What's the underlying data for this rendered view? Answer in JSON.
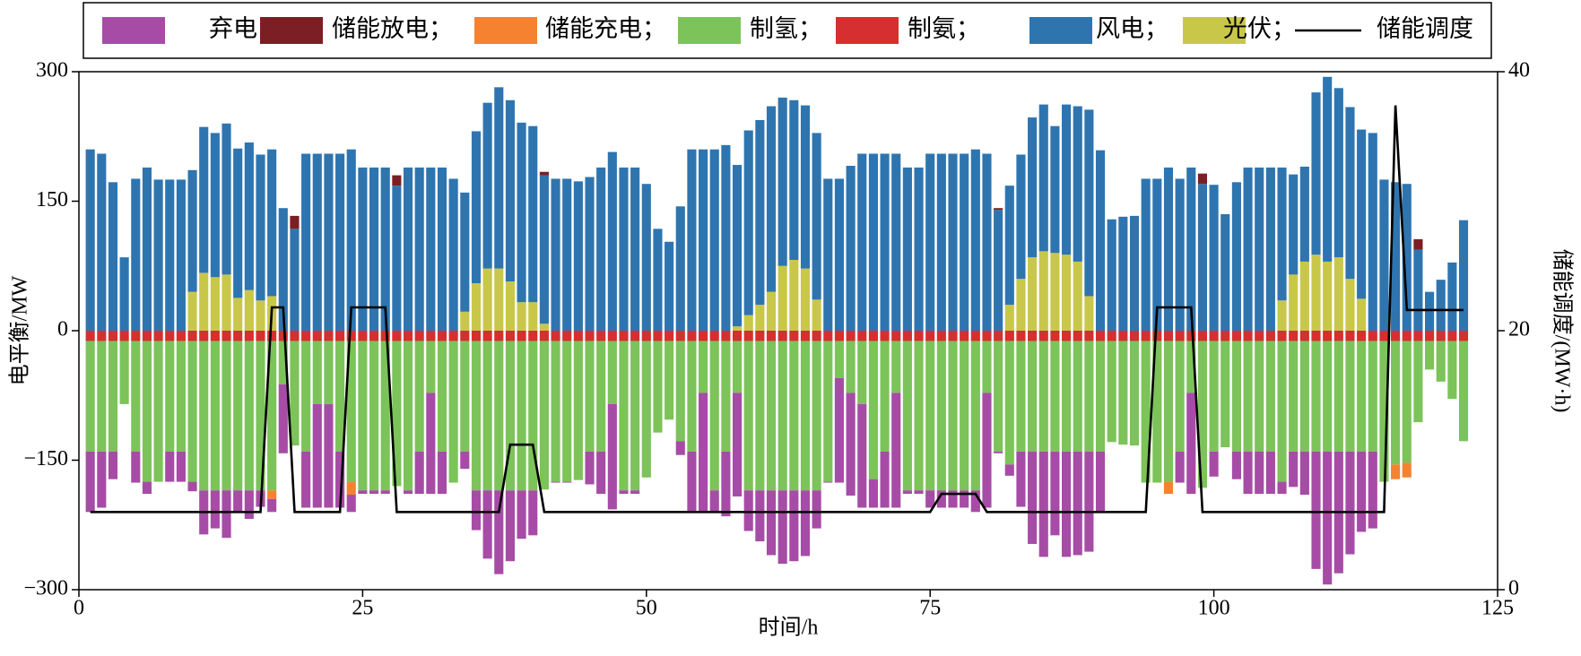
{
  "chart_data": {
    "type": "bar",
    "stacked": true,
    "xlabel": "时间/h",
    "ylabel": "电平衡/MW",
    "y2label": "储能调度/(MW·h)",
    "xlim": [
      0,
      125
    ],
    "xticks": [
      0,
      25,
      50,
      75,
      100,
      125
    ],
    "ylim": [
      -300,
      300
    ],
    "yticks": [
      {
        "value": -300,
        "label": "−300"
      },
      {
        "value": -150,
        "label": "−150"
      },
      0,
      150,
      300
    ],
    "y2lim": [
      0,
      40
    ],
    "y2ticks": [
      0,
      20,
      40
    ],
    "legend": "top",
    "x": [
      1,
      2,
      3,
      4,
      5,
      6,
      7,
      8,
      9,
      10,
      11,
      12,
      13,
      14,
      15,
      16,
      17,
      18,
      19,
      20,
      21,
      22,
      23,
      24,
      25,
      26,
      27,
      28,
      29,
      30,
      31,
      32,
      33,
      34,
      35,
      36,
      37,
      38,
      39,
      40,
      41,
      42,
      43,
      44,
      45,
      46,
      47,
      48,
      49,
      50,
      51,
      52,
      53,
      54,
      55,
      56,
      57,
      58,
      59,
      60,
      61,
      62,
      63,
      64,
      65,
      66,
      67,
      68,
      69,
      70,
      71,
      72,
      73,
      74,
      75,
      76,
      77,
      78,
      79,
      80,
      81,
      82,
      83,
      84,
      85,
      86,
      87,
      88,
      89,
      90,
      91,
      92,
      93,
      94,
      95,
      96,
      97,
      98,
      99,
      100,
      101,
      102,
      103,
      104,
      105,
      106,
      107,
      108,
      109,
      110,
      111,
      112,
      113,
      114,
      115,
      116,
      117,
      118,
      119,
      120,
      121,
      122
    ],
    "series": [
      {
        "name": "弃电；",
        "color": "#a64ca6",
        "values": [
          -70,
          -65,
          -32,
          0,
          -36,
          -14,
          0,
          -35,
          -35,
          -11,
          -51,
          -44,
          -55,
          -26,
          -33,
          -19,
          -15,
          -80,
          0,
          -65,
          -120,
          -120,
          -65,
          -20,
          -4,
          -4,
          -4,
          0,
          -4,
          -49,
          -117,
          -49,
          0,
          -20,
          -46,
          -79,
          -97,
          -82,
          -56,
          -52,
          0,
          -1,
          -1,
          0,
          -38,
          -49,
          -122,
          -4,
          -4,
          0,
          0,
          0,
          -16,
          -70,
          -138,
          -25,
          -75,
          -120,
          -47,
          -59,
          -75,
          -85,
          -82,
          -76,
          -44,
          -1,
          -121,
          -119,
          -120,
          -33,
          -65,
          -133,
          -4,
          -4,
          -20,
          -20,
          -20,
          -20,
          -25,
          -133,
          -2,
          -13,
          -64,
          -107,
          -122,
          -97,
          -122,
          -120,
          -116,
          -69,
          0,
          0,
          0,
          0,
          0,
          0,
          -36,
          -117,
          0,
          -29,
          0,
          -32,
          -49,
          -49,
          -49,
          -14,
          -41,
          -50,
          -136,
          -154,
          -141,
          -119,
          -93,
          -89,
          0,
          0,
          0,
          0,
          0,
          0,
          0,
          0
        ]
      },
      {
        "name": "储能放电；",
        "color": "#7b1f24",
        "values": [
          0,
          0,
          0,
          0,
          0,
          0,
          0,
          0,
          0,
          0,
          0,
          0,
          0,
          0,
          0,
          0,
          0,
          0,
          15,
          0,
          0,
          0,
          0,
          0,
          0,
          0,
          0,
          12,
          0,
          0,
          0,
          0,
          0,
          0,
          0,
          0,
          0,
          0,
          0,
          0,
          4,
          0,
          0,
          0,
          0,
          0,
          0,
          0,
          0,
          0,
          0,
          0,
          0,
          0,
          0,
          0,
          0,
          0,
          0,
          0,
          0,
          0,
          0,
          0,
          0,
          0,
          0,
          0,
          0,
          0,
          0,
          0,
          0,
          0,
          0,
          0,
          0,
          0,
          0,
          0,
          2,
          0,
          0,
          0,
          0,
          0,
          0,
          0,
          0,
          0,
          0,
          0,
          0,
          0,
          0,
          0,
          0,
          0,
          12,
          0,
          0,
          0,
          0,
          0,
          0,
          0,
          0,
          0,
          0,
          0,
          0,
          0,
          0,
          0,
          0,
          0,
          0,
          12,
          0,
          0,
          0,
          0
        ]
      },
      {
        "name": "储能充电；",
        "color": "#f58231",
        "values": [
          0,
          0,
          0,
          0,
          0,
          0,
          0,
          0,
          0,
          0,
          0,
          0,
          0,
          0,
          0,
          0,
          -10,
          0,
          0,
          0,
          0,
          0,
          0,
          -15,
          0,
          0,
          0,
          0,
          0,
          0,
          0,
          0,
          0,
          0,
          0,
          0,
          0,
          0,
          0,
          0,
          0,
          0,
          0,
          0,
          0,
          0,
          0,
          0,
          0,
          0,
          0,
          0,
          0,
          0,
          0,
          0,
          0,
          0,
          0,
          0,
          0,
          0,
          0,
          0,
          0,
          0,
          0,
          0,
          0,
          0,
          0,
          0,
          0,
          0,
          0,
          0,
          0,
          0,
          0,
          0,
          0,
          0,
          0,
          0,
          0,
          0,
          0,
          0,
          0,
          0,
          0,
          0,
          0,
          0,
          0,
          -14,
          0,
          0,
          0,
          0,
          0,
          0,
          0,
          0,
          0,
          0,
          0,
          0,
          0,
          0,
          0,
          0,
          0,
          0,
          0,
          -17,
          -17,
          0,
          0,
          0,
          0,
          0
        ]
      },
      {
        "name": "制氢；",
        "color": "#7cc35a",
        "values": [
          -128,
          -128,
          -128,
          -73,
          -128,
          -163,
          -163,
          -128,
          -128,
          -163,
          -173,
          -173,
          -173,
          -173,
          -173,
          -173,
          -173,
          -50,
          -121,
          -128,
          -73,
          -73,
          -128,
          -163,
          -173,
          -173,
          -173,
          -168,
          -173,
          -128,
          -60,
          -128,
          -164,
          -128,
          -173,
          -173,
          -173,
          -173,
          -173,
          -173,
          -172,
          -163,
          -163,
          -161,
          -128,
          -128,
          -73,
          -173,
          -173,
          -158,
          -106,
          -91,
          -116,
          -128,
          -60,
          -173,
          -128,
          -60,
          -173,
          -173,
          -173,
          -173,
          -173,
          -173,
          -173,
          -163,
          -43,
          -60,
          -73,
          -160,
          -128,
          -60,
          -173,
          -173,
          -173,
          -173,
          -173,
          -173,
          -173,
          -60,
          -128,
          -143,
          -128,
          -128,
          -128,
          -128,
          -128,
          -128,
          -128,
          -128,
          -117,
          -120,
          -121,
          -164,
          -164,
          -163,
          -128,
          -60,
          -170,
          -128,
          -123,
          -128,
          -128,
          -128,
          -128,
          -163,
          -128,
          -128,
          -128,
          -128,
          -128,
          -128,
          -128,
          -128,
          -163,
          -143,
          -141,
          -94,
          -33,
          -47,
          -67,
          -116
        ]
      },
      {
        "name": "制氨；",
        "color": "#d62f2f",
        "values": [
          -12,
          -12,
          -12,
          -12,
          -12,
          -12,
          -12,
          -12,
          -12,
          -12,
          -12,
          -12,
          -12,
          -12,
          -12,
          -12,
          -12,
          -12,
          -12,
          -12,
          -12,
          -12,
          -12,
          -12,
          -12,
          -12,
          -12,
          -12,
          -12,
          -12,
          -12,
          -12,
          -12,
          -12,
          -12,
          -12,
          -12,
          -12,
          -12,
          -12,
          -12,
          -12,
          -12,
          -12,
          -12,
          -12,
          -12,
          -12,
          -12,
          -12,
          -12,
          -12,
          -12,
          -12,
          -12,
          -12,
          -12,
          -12,
          -12,
          -12,
          -12,
          -12,
          -12,
          -12,
          -12,
          -12,
          -12,
          -12,
          -12,
          -12,
          -12,
          -12,
          -12,
          -12,
          -12,
          -12,
          -12,
          -12,
          -12,
          -12,
          -12,
          -12,
          -12,
          -12,
          -12,
          -12,
          -12,
          -12,
          -12,
          -12,
          -12,
          -12,
          -12,
          -12,
          -12,
          -12,
          -12,
          -12,
          -12,
          -12,
          -12,
          -12,
          -12,
          -12,
          -12,
          -12,
          -12,
          -12,
          -12,
          -12,
          -12,
          -12,
          -12,
          -12,
          -12,
          -12,
          -12,
          -12,
          -12,
          -12,
          -12,
          -12
        ]
      },
      {
        "name": "风电；",
        "color": "#2e75b0",
        "values": [
          210,
          205,
          172,
          85,
          176,
          189,
          175,
          175,
          175,
          141,
          169,
          167,
          175,
          173,
          171,
          169,
          170,
          142,
          118,
          205,
          205,
          205,
          205,
          210,
          189,
          189,
          189,
          168,
          189,
          189,
          189,
          189,
          176,
          138,
          176,
          192,
          210,
          210,
          208,
          204,
          172,
          176,
          176,
          173,
          178,
          189,
          207,
          189,
          189,
          170,
          118,
          103,
          144,
          210,
          210,
          210,
          215,
          187,
          214,
          214,
          215,
          195,
          185,
          189,
          193,
          176,
          176,
          191,
          205,
          205,
          205,
          205,
          189,
          189,
          205,
          205,
          205,
          205,
          210,
          205,
          140,
          138,
          144,
          162,
          170,
          147,
          174,
          180,
          216,
          209,
          129,
          132,
          133,
          176,
          176,
          189,
          176,
          189,
          170,
          169,
          135,
          172,
          189,
          189,
          189,
          154,
          116,
          110,
          188,
          214,
          196,
          199,
          196,
          229,
          175,
          172,
          170,
          94,
          45,
          59,
          79,
          128
        ]
      },
      {
        "name": "光伏；",
        "color": "#c9c74a",
        "values": [
          0,
          0,
          0,
          0,
          0,
          0,
          0,
          0,
          0,
          45,
          67,
          62,
          65,
          38,
          47,
          35,
          40,
          0,
          0,
          0,
          0,
          0,
          0,
          0,
          0,
          0,
          0,
          0,
          0,
          0,
          0,
          0,
          0,
          22,
          55,
          72,
          72,
          57,
          33,
          33,
          8,
          0,
          0,
          0,
          0,
          0,
          0,
          0,
          0,
          0,
          0,
          0,
          0,
          0,
          0,
          0,
          0,
          5,
          18,
          30,
          45,
          75,
          82,
          72,
          36,
          0,
          0,
          0,
          0,
          0,
          0,
          0,
          0,
          0,
          0,
          0,
          0,
          0,
          0,
          0,
          0,
          30,
          60,
          85,
          92,
          90,
          88,
          80,
          40,
          0,
          0,
          0,
          0,
          0,
          0,
          0,
          0,
          0,
          0,
          0,
          0,
          0,
          0,
          0,
          0,
          35,
          65,
          80,
          88,
          80,
          85,
          60,
          37,
          0,
          0,
          0,
          0,
          0,
          0,
          0,
          0,
          0
        ]
      },
      {
        "name": "储能调度",
        "color": "#000000",
        "type": "line",
        "axis": "y2",
        "values": [
          6,
          6,
          6,
          6,
          6,
          6,
          6,
          6,
          6,
          6,
          6,
          6,
          6,
          6,
          6,
          6,
          21.8,
          21.8,
          6,
          6,
          6,
          6,
          6,
          21.8,
          21.8,
          21.8,
          21.8,
          6,
          6,
          6,
          6,
          6,
          6,
          6,
          6,
          6,
          6,
          11.2,
          11.2,
          11.2,
          6,
          6,
          6,
          6,
          6,
          6,
          6,
          6,
          6,
          6,
          6,
          6,
          6,
          6,
          6,
          6,
          6,
          6,
          6,
          6,
          6,
          6,
          6,
          6,
          6,
          6,
          6,
          6,
          6,
          6,
          6,
          6,
          6,
          6,
          6,
          7.4,
          7.4,
          7.4,
          7.4,
          6,
          6,
          6,
          6,
          6,
          6,
          6,
          6,
          6,
          6,
          6,
          6,
          6,
          6,
          6,
          21.8,
          21.8,
          21.8,
          21.8,
          6,
          6,
          6,
          6,
          6,
          6,
          6,
          6,
          6,
          6,
          6,
          6,
          6,
          6,
          6,
          6,
          6,
          37.4,
          21.6,
          21.6,
          21.6,
          21.6,
          21.6,
          21.6
        ]
      }
    ]
  }
}
